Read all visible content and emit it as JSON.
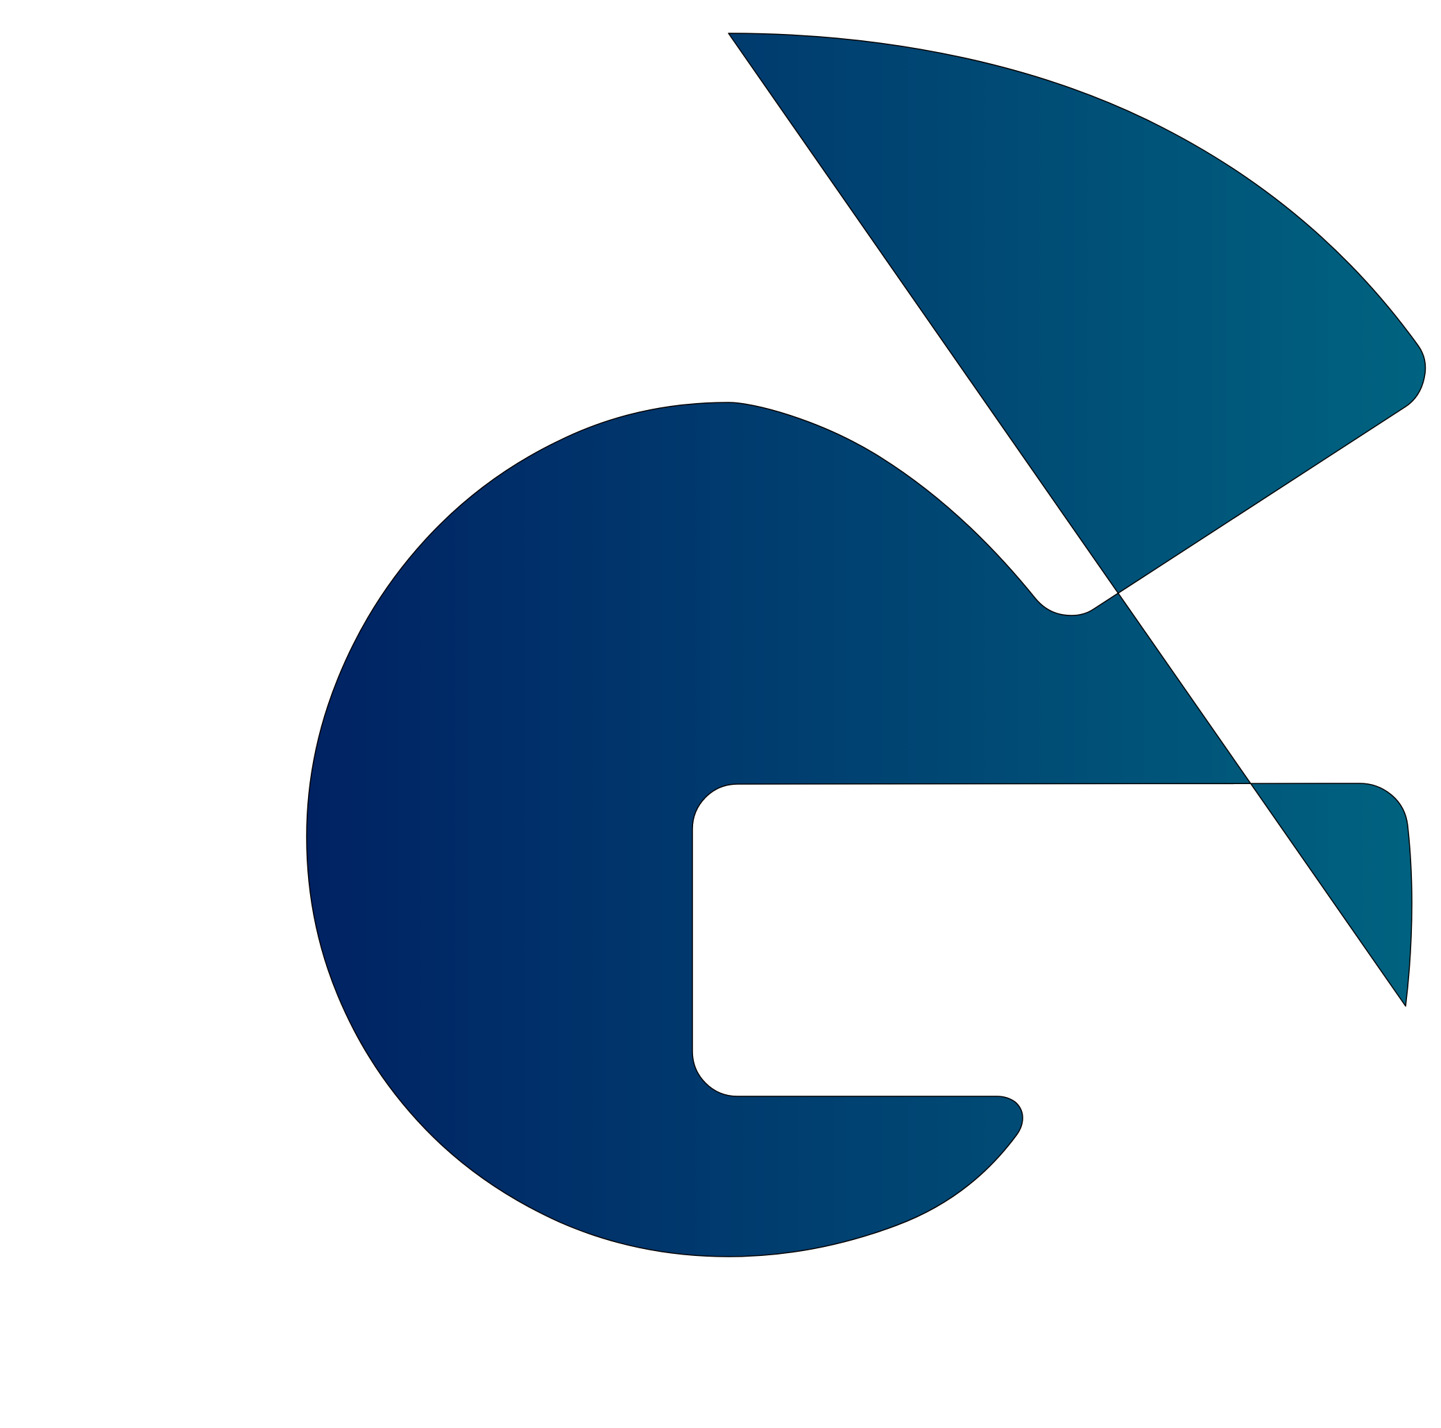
{
  "logo": {
    "icon": "letter-g-logo-icon",
    "gradient_start": "#002263",
    "gradient_end": "#006380",
    "outline": "#000000",
    "background": "#ffffff"
  }
}
